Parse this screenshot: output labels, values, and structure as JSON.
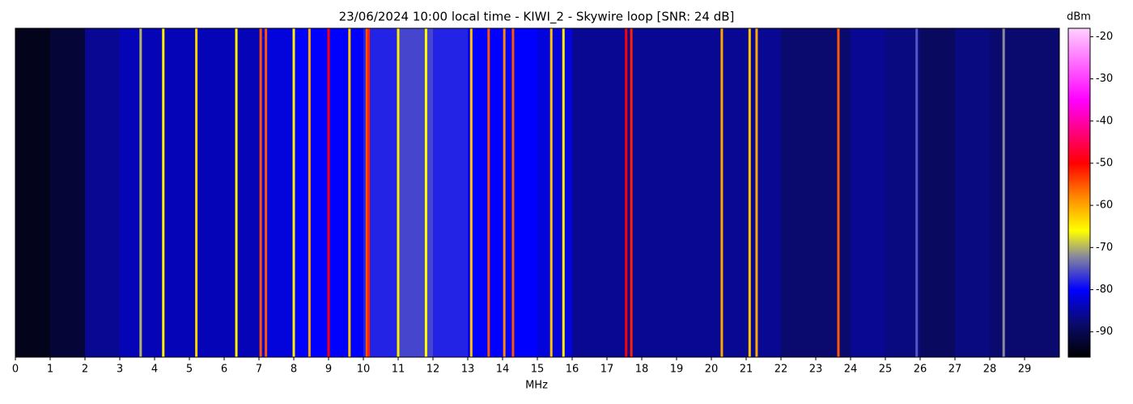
{
  "chart_data": {
    "type": "waterfall",
    "title": "23/06/2024 10:00 local time - KIWI_2 - Skywire loop [SNR: 24 dB]",
    "x_label": "MHz",
    "colorbar_label": "dBm",
    "xlim": [
      0,
      30
    ],
    "xticks": [
      0,
      1,
      2,
      3,
      4,
      5,
      6,
      7,
      8,
      9,
      10,
      11,
      12,
      13,
      14,
      15,
      16,
      17,
      18,
      19,
      20,
      21,
      22,
      23,
      24,
      25,
      26,
      27,
      28,
      29
    ],
    "clim": [
      -96,
      -18
    ],
    "cticks": [
      -20,
      -30,
      -40,
      -50,
      -60,
      -70,
      -80,
      -90
    ],
    "colormap": [
      {
        "value": -96,
        "color": "#000000"
      },
      {
        "value": -88,
        "color": "#0a0a6e"
      },
      {
        "value": -80,
        "color": "#0000ff"
      },
      {
        "value": -72,
        "color": "#8a8a9a"
      },
      {
        "value": -66,
        "color": "#ffff00"
      },
      {
        "value": -58,
        "color": "#ff8800"
      },
      {
        "value": -50,
        "color": "#ff0000"
      },
      {
        "value": -35,
        "color": "#ff00ff"
      },
      {
        "value": -18,
        "color": "#ffd0ff"
      }
    ],
    "background": {
      "x": [
        0,
        1,
        2,
        3,
        4,
        5,
        6,
        7,
        8,
        9,
        10,
        11,
        12,
        13,
        14,
        15,
        16,
        17,
        18,
        19,
        20,
        21,
        22,
        23,
        24,
        25,
        26,
        27,
        28,
        29
      ],
      "values": [
        -94,
        -92,
        -86,
        -84,
        -84,
        -84,
        -84,
        -82,
        -80,
        -80,
        -78,
        -76,
        -78,
        -80,
        -80,
        -82,
        -86,
        -86,
        -86,
        -86,
        -86,
        -86,
        -88,
        -88,
        -86,
        -87,
        -89,
        -87,
        -88,
        -88
      ]
    },
    "signals": {
      "x": [
        3.6,
        4.25,
        5.2,
        6.35,
        7.05,
        7.2,
        8.0,
        8.45,
        9.0,
        9.6,
        10.1,
        10.15,
        11.0,
        11.8,
        13.1,
        13.6,
        14.05,
        14.3,
        15.4,
        15.75,
        17.55,
        17.7,
        20.3,
        21.1,
        21.3,
        23.65,
        25.9,
        28.4
      ],
      "values": [
        -70,
        -65,
        -63,
        -65,
        -55,
        -55,
        -65,
        -60,
        -50,
        -62,
        -55,
        -52,
        -65,
        -66,
        -62,
        -55,
        -58,
        -55,
        -62,
        -65,
        -50,
        -52,
        -60,
        -62,
        -60,
        -55,
        -75,
        -72
      ]
    }
  }
}
